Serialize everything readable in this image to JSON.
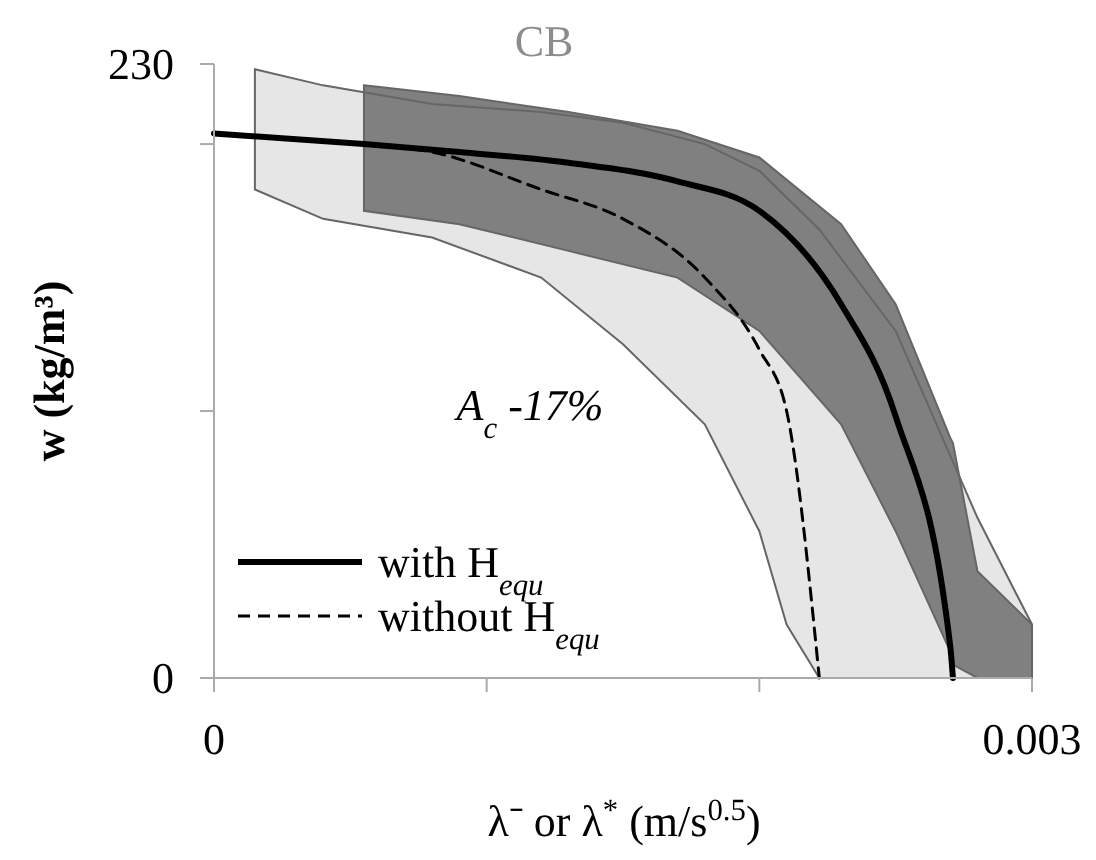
{
  "chart_data": {
    "type": "line",
    "title": "CB",
    "xlabel": "λ⁻ or λ$^{*}$ (m/s$^{0.5}$)",
    "ylabel": "w (kg/m³)",
    "annotations": [
      "A$_{c}$  -17%"
    ],
    "xlim": [
      0,
      0.003
    ],
    "xticks": [
      0,
      {
        "value": 0.001,
        "label": null
      },
      {
        "value": 0.002,
        "label": null
      },
      0.003
    ],
    "ylim": [
      0,
      230
    ],
    "yticks": [
      0,
      {
        "value": 100,
        "label": null
      },
      {
        "value": 200,
        "label": null
      },
      230
    ],
    "legend": "bottom left",
    "grid": false,
    "series": [
      {
        "name": "with H$_{equ}$",
        "color": "#000000",
        "line_style": "solid",
        "x": [
          0,
          0.00055,
          0.0009,
          0.0013,
          0.0017,
          0.002,
          0.0023,
          0.0025,
          0.0027,
          0.00271,
          0.0028,
          0.003
        ],
        "values": [
          204,
          200,
          197,
          193,
          186,
          175,
          140,
          98,
          12,
          0,
          null,
          null
        ],
        "lower": [
          null,
          175,
          170,
          160,
          150,
          130,
          95,
          55,
          10,
          5,
          0,
          0
        ],
        "upper": [
          null,
          222,
          218,
          212,
          205,
          195,
          170,
          140,
          90,
          88,
          40,
          20
        ]
      },
      {
        "name": "without H$_{equ}$",
        "color": "#000000",
        "line_style": "dashed",
        "x": [
          0,
          0.00015,
          0.0004,
          0.0008,
          0.0012,
          0.0015,
          0.0018,
          0.002,
          0.0021,
          0.00222,
          0.0025,
          0.0028,
          0.003
        ],
        "values": [
          204,
          203,
          201,
          197,
          183,
          172,
          150,
          123,
          100,
          0,
          null,
          null,
          null
        ],
        "lower": [
          null,
          183,
          172,
          165,
          150,
          125,
          95,
          55,
          20,
          0,
          0,
          0,
          0
        ],
        "upper": [
          null,
          228,
          222,
          215,
          212,
          208,
          200,
          190,
          180,
          168,
          130,
          60,
          20
        ]
      }
    ]
  }
}
